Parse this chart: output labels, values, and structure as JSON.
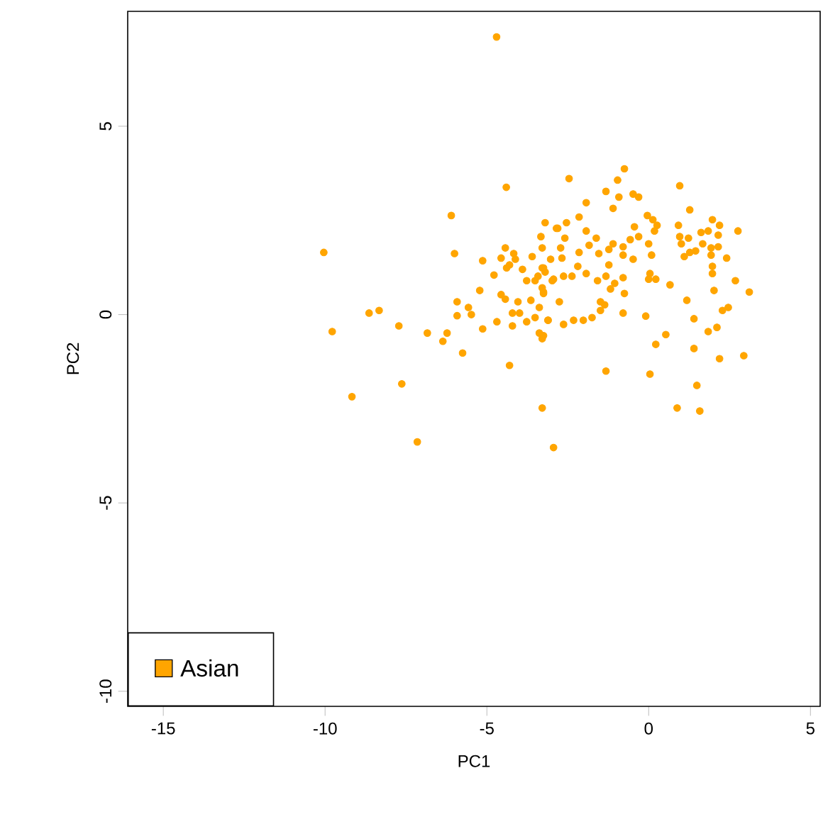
{
  "chart_data": {
    "type": "scatter",
    "xlabel": "PC1",
    "ylabel": "PC2",
    "xlim": [
      -16.1,
      5.3
    ],
    "ylim": [
      -10.4,
      8.05
    ],
    "xticks": [
      -15,
      -10,
      -5,
      0,
      5
    ],
    "yticks": [
      -10,
      -5,
      0,
      5
    ],
    "legend": "bottom left",
    "series": [
      {
        "name": "Asian",
        "color": "#ffa500",
        "x": [
          -4.7,
          -4.4,
          -6.1,
          -10.04,
          -6.0,
          -9.78,
          -8.64,
          -8.33,
          -7.72,
          -6.84,
          -6.23,
          -6.36,
          -5.75,
          -9.17,
          -7.63,
          -7.15,
          -4.3,
          -3.29,
          -2.94,
          -5.92,
          -5.92,
          -5.57,
          -5.48,
          -5.22,
          -5.13,
          -4.78,
          -5.13,
          -4.56,
          -4.43,
          -4.17,
          -4.12,
          -4.39,
          -4.3,
          -3.9,
          -4.56,
          -4.43,
          -4.69,
          -4.21,
          -3.99,
          -4.04,
          -4.21,
          -3.77,
          -3.51,
          -3.38,
          -3.64,
          -3.11,
          -3.38,
          -3.29,
          -3.77,
          -3.51,
          -3.42,
          -3.29,
          -3.2,
          -3.29,
          -3.25,
          -3.6,
          -3.29,
          -3.33,
          -3.2,
          -2.85,
          -3.03,
          -2.98,
          -2.76,
          -2.46,
          -0.75,
          -0.96,
          -1.32,
          -1.93,
          -1.1,
          -0.92,
          -0.48,
          -0.31,
          0.96,
          1.27,
          -2.15,
          -2.54,
          -2.81,
          -1.93,
          -2.59,
          -2.72,
          -1.84,
          -1.62,
          -1.1,
          -1.23,
          -0.57,
          -0.44,
          -0.04,
          0.13,
          0.26,
          0.18,
          -0.31,
          0,
          0.09,
          -0.48,
          -0.79,
          -0.79,
          -2.15,
          -1.54,
          -2.68,
          -3.25,
          -2.94,
          -2.63,
          -2.37,
          -2.19,
          -1.93,
          -1.58,
          -1.23,
          -1.32,
          -1.05,
          -1.18,
          -0.79,
          -0.75,
          -3.25,
          -3.11,
          -2.63,
          -2.32,
          -2.02,
          -1.75,
          -1.49,
          -1.36,
          -1.49,
          -0.79,
          -0.09,
          0.04,
          0.22,
          0,
          0.66,
          0.92,
          0.96,
          1.01,
          1.23,
          1.45,
          1.67,
          1.62,
          1.84,
          1.97,
          2.19,
          2.15,
          1.93,
          1.93,
          2.15,
          2.41,
          2.76,
          1.97,
          1.97,
          1.27,
          1.1,
          2.68,
          3.11,
          2.02,
          1.18,
          2.46,
          2.28,
          1.4,
          2.11,
          1.84,
          0.53,
          0.22,
          1.4,
          2.19,
          2.94,
          -1.32,
          0.04,
          1.49,
          0.88,
          1.58,
          -3.25
        ],
        "values": [
          7.37,
          3.38,
          2.63,
          1.65,
          1.62,
          -0.45,
          0.04,
          0.11,
          -0.3,
          -0.49,
          -0.49,
          -0.71,
          -1.02,
          -2.18,
          -1.84,
          -3.38,
          -1.35,
          -2.48,
          -3.53,
          0.34,
          -0.03,
          0.19,
          0,
          0.64,
          -0.38,
          1.05,
          1.43,
          1.5,
          1.77,
          1.62,
          1.47,
          1.24,
          1.32,
          1.2,
          0.53,
          0.41,
          -0.19,
          0.04,
          0.04,
          0.34,
          -0.3,
          -0.19,
          -0.08,
          0.19,
          0.38,
          -0.15,
          -0.49,
          -0.64,
          0.9,
          0.9,
          1.02,
          1.24,
          1.13,
          0.71,
          0.56,
          1.54,
          1.77,
          2.07,
          2.44,
          2.29,
          1.47,
          0.9,
          0.34,
          3.61,
          3.87,
          3.57,
          3.27,
          2.97,
          2.82,
          3.12,
          3.2,
          3.12,
          3.42,
          2.78,
          2.59,
          2.44,
          2.29,
          2.22,
          2.03,
          1.77,
          1.84,
          2.03,
          1.88,
          1.73,
          1.99,
          2.33,
          2.63,
          2.52,
          2.37,
          2.22,
          2.07,
          1.88,
          1.58,
          1.47,
          1.58,
          1.8,
          1.65,
          1.62,
          1.5,
          1.24,
          0.94,
          1.02,
          1.02,
          1.28,
          1.09,
          0.9,
          1.32,
          1.02,
          0.83,
          0.68,
          0.98,
          0.56,
          0.6,
          -0.15,
          -0.26,
          -0.15,
          -0.15,
          -0.08,
          0.11,
          0.26,
          0.34,
          0.04,
          -0.04,
          1.09,
          0.94,
          0.94,
          0.79,
          2.37,
          2.07,
          1.88,
          2.03,
          1.69,
          1.88,
          2.18,
          2.22,
          2.52,
          2.37,
          2.11,
          1.77,
          1.58,
          1.8,
          1.5,
          2.22,
          1.28,
          1.09,
          1.65,
          1.54,
          0.9,
          0.6,
          0.64,
          0.38,
          0.19,
          0.11,
          -0.11,
          -0.34,
          -0.45,
          -0.53,
          -0.79,
          -0.9,
          -1.17,
          -1.09,
          -1.5,
          -1.58,
          -1.88,
          -2.48,
          -2.56,
          -0.56
        ]
      }
    ]
  }
}
